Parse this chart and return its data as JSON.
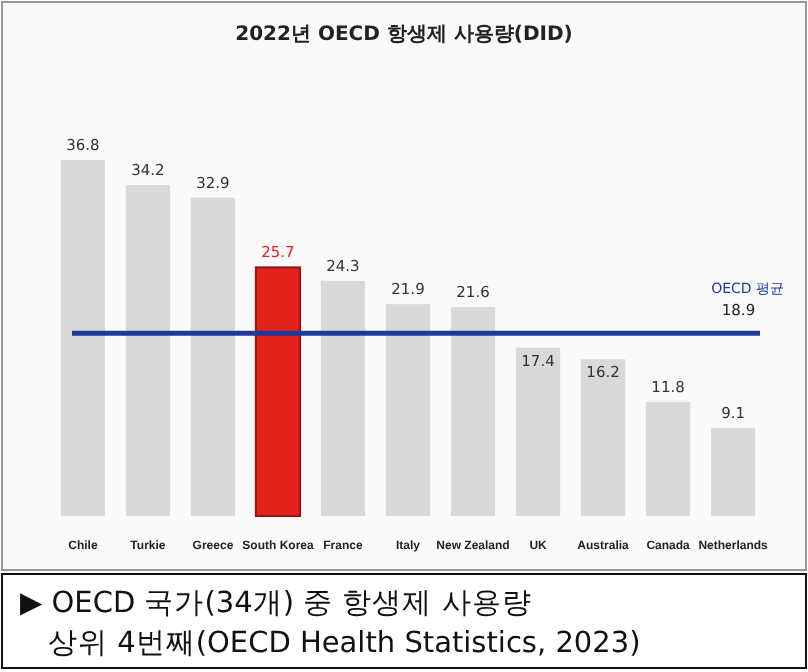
{
  "chart_data": {
    "type": "bar",
    "title": "2022년 OECD 항생제 사용량(DID)",
    "categories": [
      "Chile",
      "Turkie",
      "Greece",
      "South Korea",
      "France",
      "Italy",
      "New Zealand",
      "UK",
      "Australia",
      "Canada",
      "Netherlands"
    ],
    "values": [
      36.8,
      34.2,
      32.9,
      25.7,
      24.3,
      21.9,
      21.6,
      17.4,
      16.2,
      11.8,
      9.1
    ],
    "colors": [
      "#d9d9d9",
      "#d9d9d9",
      "#d9d9d9",
      "#e3221c",
      "#d9d9d9",
      "#d9d9d9",
      "#d9d9d9",
      "#d9d9d9",
      "#d9d9d9",
      "#d9d9d9",
      "#d9d9d9"
    ],
    "data_labels": true,
    "ref_lines": [
      {
        "axis": "y",
        "value": 18.9,
        "label": "OECD 평균",
        "color": "#1f3a9a"
      }
    ],
    "annotations": [
      {
        "text": "18.9",
        "x": "Netherlands",
        "y": 18.9
      },
      "▶ OECD 국가(34개) 중 항생제 사용량",
      "상위 4번째(OECD Health Statistics, 2023)"
    ]
  }
}
